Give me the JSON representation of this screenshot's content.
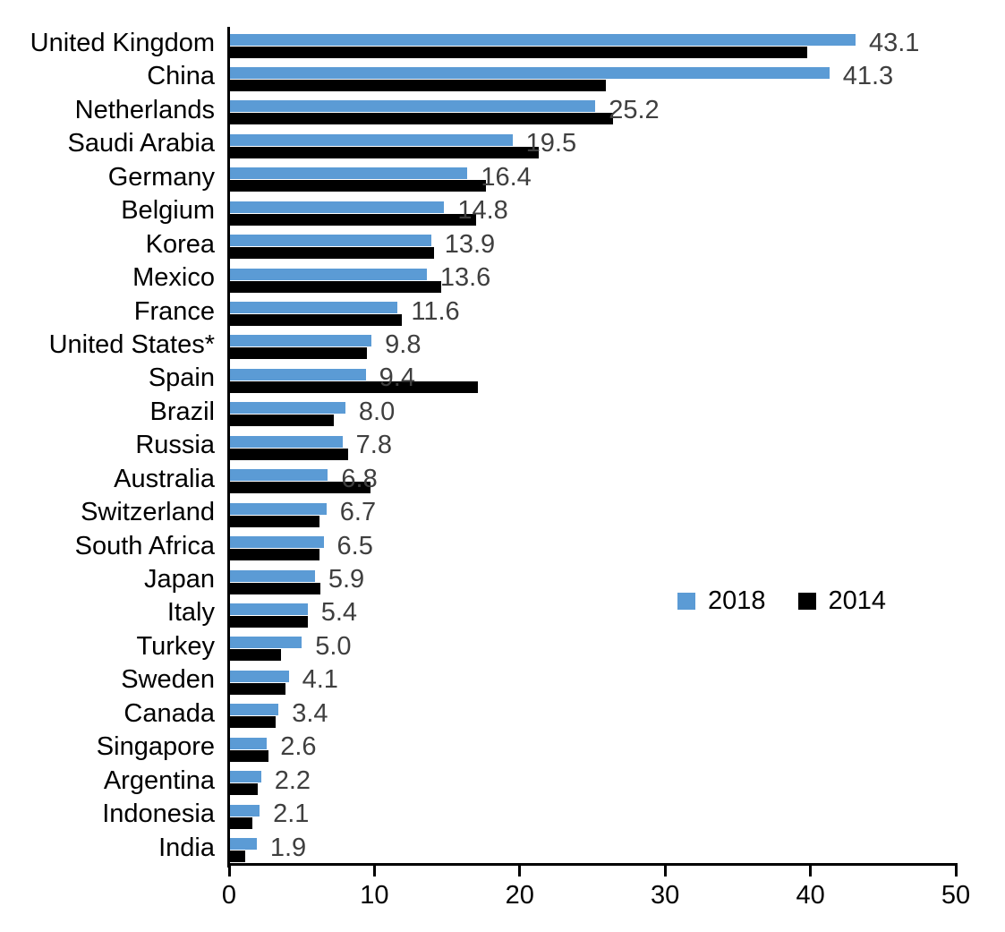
{
  "chart_data": {
    "type": "bar",
    "orientation": "horizontal",
    "title": "",
    "xlabel": "",
    "ylabel": "",
    "xlim": [
      0,
      50
    ],
    "x_ticks": [
      "0",
      "10",
      "20",
      "30",
      "40",
      "50"
    ],
    "grid": false,
    "legend_position": "middle-right",
    "categories": [
      "United Kingdom",
      "China",
      "Netherlands",
      "Saudi Arabia",
      "Germany",
      "Belgium",
      "Korea",
      "Mexico",
      "France",
      "United States*",
      "Spain",
      "Brazil",
      "Russia",
      "Australia",
      "Switzerland",
      "South Africa",
      "Japan",
      "Italy",
      "Turkey",
      "Sweden",
      "Canada",
      "Singapore",
      "Argentina",
      "Indonesia",
      "India"
    ],
    "series": [
      {
        "name": "2018",
        "color": "#5B9BD5",
        "values": [
          43.1,
          41.3,
          25.2,
          19.5,
          16.4,
          14.8,
          13.9,
          13.6,
          11.6,
          9.8,
          9.4,
          8.0,
          7.8,
          6.8,
          6.7,
          6.5,
          5.9,
          5.4,
          5.0,
          4.1,
          3.4,
          2.6,
          2.2,
          2.1,
          1.9
        ]
      },
      {
        "name": "2014",
        "color": "#000000",
        "values": [
          39.8,
          25.9,
          26.4,
          21.3,
          17.7,
          17.0,
          14.1,
          14.6,
          11.9,
          9.5,
          17.1,
          7.2,
          8.2,
          9.7,
          6.2,
          6.2,
          6.3,
          5.4,
          3.6,
          3.9,
          3.2,
          2.7,
          2.0,
          1.6,
          1.1
        ]
      }
    ],
    "data_labels": {
      "series": "2018",
      "values": [
        "43.1",
        "41.3",
        "25.2",
        "19.5",
        "16.4",
        "14.8",
        "13.9",
        "13.6",
        "11.6",
        "9.8",
        "9.4",
        "8.0",
        "7.8",
        "6.8",
        "6.7",
        "6.5",
        "5.9",
        "5.4",
        "5.0",
        "4.1",
        "3.4",
        "2.6",
        "2.2",
        "2.1",
        "1.9"
      ]
    }
  },
  "colors": {
    "bar_2018": "#5B9BD5",
    "bar_2014": "#000000",
    "axis": "#000000",
    "value_label_text": "#3F3F3F",
    "category_label_text": "#000000"
  },
  "legend": {
    "entries": [
      "2018",
      "2014"
    ]
  }
}
